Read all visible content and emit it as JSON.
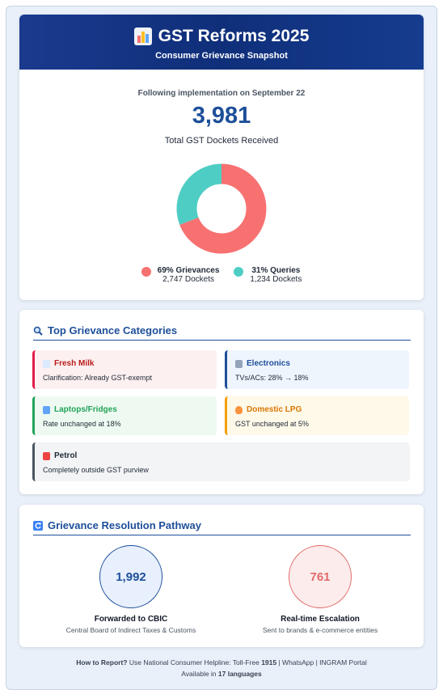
{
  "header": {
    "title": "GST Reforms 2025",
    "subtitle": "Consumer Grievance Snapshot",
    "icon": "bar-chart-icon"
  },
  "summary": {
    "kicker": "Following implementation on September 22",
    "total": "3,981",
    "total_label": "Total GST Dockets Received"
  },
  "breakdown": {
    "grievances": {
      "label": "69% Grievances",
      "dockets": "2,747 Dockets",
      "percent": 69,
      "color": "#f87171"
    },
    "queries": {
      "label": "31% Queries",
      "dockets": "1,234 Dockets",
      "percent": 31,
      "color": "#4ecdc4"
    }
  },
  "categories": {
    "title": "Top Grievance Categories",
    "items": [
      {
        "name": "Fresh Milk",
        "desc": "Clarification: Already GST-exempt",
        "icon": "milk-icon",
        "accent": "#e11d48",
        "bg": "#fdf0f0",
        "text": "#b91c1c"
      },
      {
        "name": "Electronics",
        "desc": "TVs/ACs: 28% → 18%",
        "icon": "tv-icon",
        "accent": "#1e4f9a",
        "bg": "#eef5fd",
        "text": "#1e4f9a"
      },
      {
        "name": "Laptops/Fridges",
        "desc": "Rate unchanged at 18%",
        "icon": "laptop-icon",
        "accent": "#22a35a",
        "bg": "#eefaf1",
        "text": "#22a35a"
      },
      {
        "name": "Domestic LPG",
        "desc": "GST unchanged at 5%",
        "icon": "flame-icon",
        "accent": "#f59e0b",
        "bg": "#fef9e8",
        "text": "#d97706"
      },
      {
        "name": "Petrol",
        "desc": "Completely outside GST purview",
        "icon": "fuel-icon",
        "accent": "#4b5563",
        "bg": "#f3f4f6",
        "text": "#1f2937"
      }
    ]
  },
  "pathway": {
    "title": "Grievance Resolution Pathway",
    "cbic": {
      "count": "1,992",
      "label": "Forwarded to CBIC",
      "desc": "Central Board of Indirect Taxes & Customs"
    },
    "escalation": {
      "count": "761",
      "label": "Real-time Escalation",
      "desc": "Sent to brands & e-commerce entities"
    }
  },
  "footer": {
    "how_label": "How to Report?",
    "line1": " Use National Consumer Helpline: Toll-Free ",
    "tollfree": "1915",
    "line1_end": " | WhatsApp | INGRAM Portal",
    "avail_prefix": "Available in ",
    "languages": "17 languages"
  }
}
